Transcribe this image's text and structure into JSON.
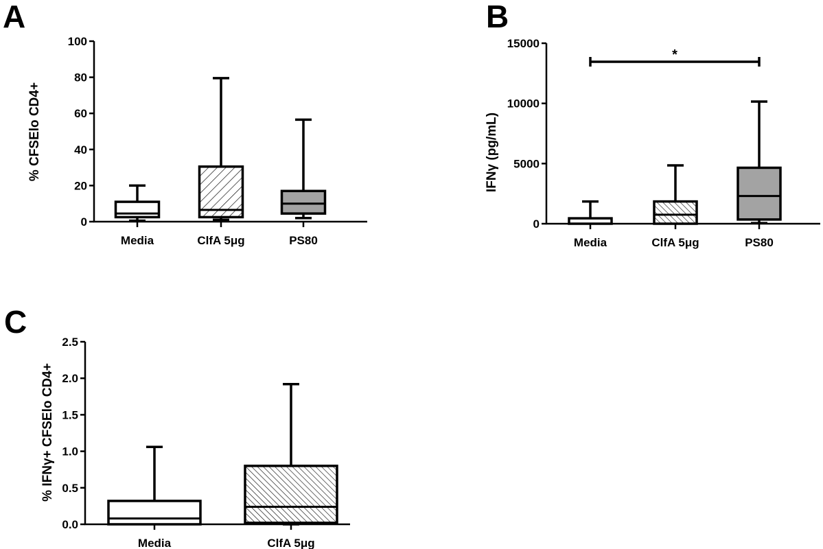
{
  "chart_data": [
    {
      "type": "box",
      "panel": "A",
      "ylabel": "% CFSElo CD4+",
      "ylim": [
        0,
        100
      ],
      "yticks": [
        "0",
        "20",
        "40",
        "60",
        "80",
        "100"
      ],
      "categories": [
        "Media",
        "ClfA 5μg",
        "PS80"
      ],
      "boxes": [
        {
          "min": 0.5,
          "q1": 2.5,
          "median": 4.5,
          "q3": 11,
          "max": 20,
          "fill": "white"
        },
        {
          "min": 1,
          "q1": 2.5,
          "median": 6.5,
          "q3": 30.5,
          "max": 79.5,
          "fill": "hatch-wide"
        },
        {
          "min": 2,
          "q1": 4.5,
          "median": 10,
          "q3": 17,
          "max": 56.5,
          "fill": "#a3a3a3"
        }
      ]
    },
    {
      "type": "box",
      "panel": "B",
      "ylabel": "IFNγ (pg/mL)",
      "ylim": [
        0,
        15000
      ],
      "yticks": [
        "0",
        "5000",
        "10000",
        "15000"
      ],
      "categories": [
        "Media",
        "ClfA 5μg",
        "PS80"
      ],
      "boxes": [
        {
          "min": 0,
          "q1": 0,
          "median": 0,
          "q3": 450,
          "max": 1850,
          "fill": "white"
        },
        {
          "min": 0,
          "q1": 0,
          "median": 750,
          "q3": 1850,
          "max": 4850,
          "fill": "hatch-dense"
        },
        {
          "min": 50,
          "q1": 350,
          "median": 2300,
          "q3": 4650,
          "max": 10150,
          "fill": "#a3a3a3"
        }
      ],
      "annotations": [
        {
          "from": 0,
          "to": 2,
          "y": 13500,
          "text": "*"
        }
      ]
    },
    {
      "type": "box",
      "panel": "C",
      "ylabel": "% IFNγ+ CFSElo CD4+",
      "ylim": [
        0,
        2.5
      ],
      "yticks": [
        "0.0",
        "0.5",
        "1.0",
        "1.5",
        "2.0",
        "2.5"
      ],
      "categories": [
        "Media",
        "ClfA 5μg"
      ],
      "boxes": [
        {
          "min": 0,
          "q1": 0,
          "median": 0.08,
          "q3": 0.32,
          "max": 1.06,
          "fill": "white"
        },
        {
          "min": 0,
          "q1": 0.02,
          "median": 0.24,
          "q3": 0.8,
          "max": 1.92,
          "fill": "hatch-dense"
        }
      ]
    }
  ]
}
